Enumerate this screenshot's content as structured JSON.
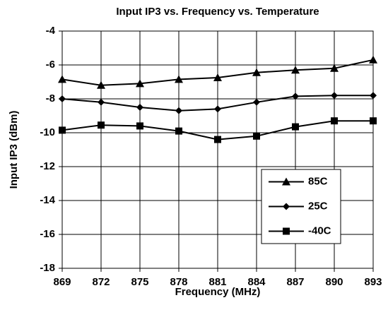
{
  "chart_data": {
    "type": "line",
    "title": "Input IP3 vs. Frequency vs. Temperature",
    "x_label": "Frequency (MHz)",
    "y_label": "Input IP3 (dBm)",
    "x": [
      869,
      872,
      875,
      878,
      881,
      884,
      887,
      890,
      893
    ],
    "series": [
      {
        "name": "85C",
        "color": "#000000",
        "marker": "triangle",
        "values": [
          -6.85,
          -7.2,
          -7.1,
          -6.85,
          -6.75,
          -6.45,
          -6.3,
          -6.2,
          -5.7
        ]
      },
      {
        "name": "25C",
        "color": "#000000",
        "marker": "diamond",
        "values": [
          -8.0,
          -8.2,
          -8.5,
          -8.7,
          -8.6,
          -8.2,
          -7.85,
          -7.8,
          -7.8
        ]
      },
      {
        "name": "-40C",
        "color": "#000000",
        "marker": "square",
        "values": [
          -9.85,
          -9.55,
          -9.6,
          -9.9,
          -10.4,
          -10.2,
          -9.65,
          -9.3,
          -9.3
        ]
      }
    ],
    "xlim": [
      869,
      893
    ],
    "xticks": [
      869,
      872,
      875,
      878,
      881,
      884,
      887,
      890,
      893
    ],
    "ylim": [
      -18,
      -4
    ],
    "yticks": [
      -18,
      -16,
      -14,
      -12,
      -10,
      -8,
      -6,
      -4
    ],
    "grid": true,
    "legend_position": "lower right"
  }
}
